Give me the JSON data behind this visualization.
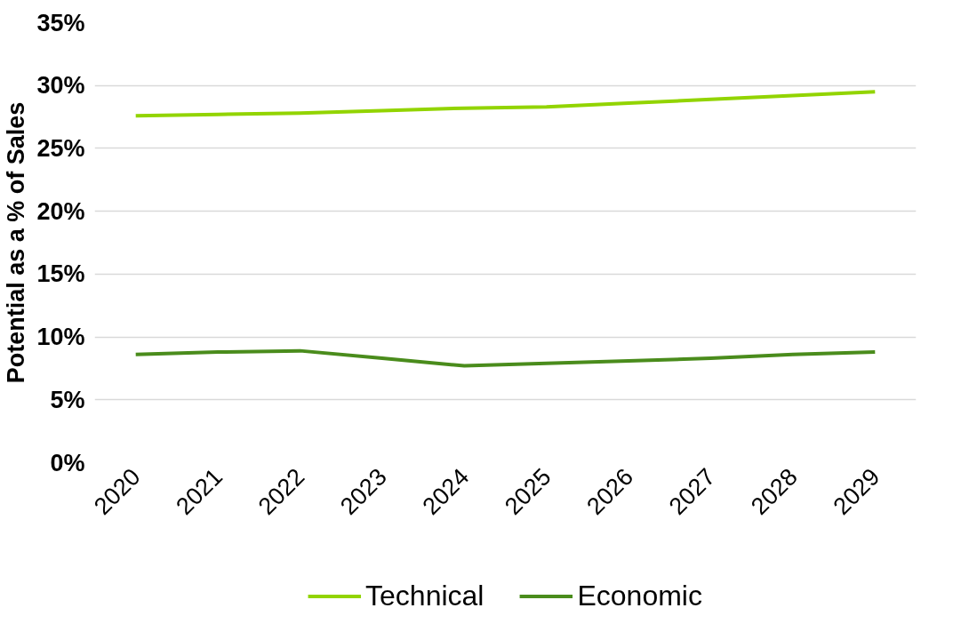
{
  "chart_data": {
    "type": "line",
    "ylabel": "Potential as a % of Sales",
    "categories": [
      "2020",
      "2021",
      "2022",
      "2023",
      "2024",
      "2025",
      "2026",
      "2027",
      "2028",
      "2029"
    ],
    "series": [
      {
        "name": "Technical",
        "color": "#92d400",
        "values": [
          27.6,
          27.7,
          27.8,
          28.0,
          28.2,
          28.3,
          28.6,
          28.9,
          29.2,
          29.5
        ]
      },
      {
        "name": "Economic",
        "color": "#4a8c1c",
        "values": [
          8.6,
          8.8,
          8.9,
          8.3,
          7.7,
          7.9,
          8.1,
          8.3,
          8.6,
          8.8
        ]
      }
    ],
    "ylim": [
      0,
      35
    ],
    "yticks": [
      {
        "value": 0,
        "label": "0%"
      },
      {
        "value": 5,
        "label": "5%"
      },
      {
        "value": 10,
        "label": "10%"
      },
      {
        "value": 15,
        "label": "15%"
      },
      {
        "value": 20,
        "label": "20%"
      },
      {
        "value": 25,
        "label": "25%"
      },
      {
        "value": 30,
        "label": "30%"
      },
      {
        "value": 35,
        "label": "35%"
      }
    ],
    "grid": "y",
    "legend": "bottom",
    "marker": "none",
    "line_style": "solid"
  }
}
